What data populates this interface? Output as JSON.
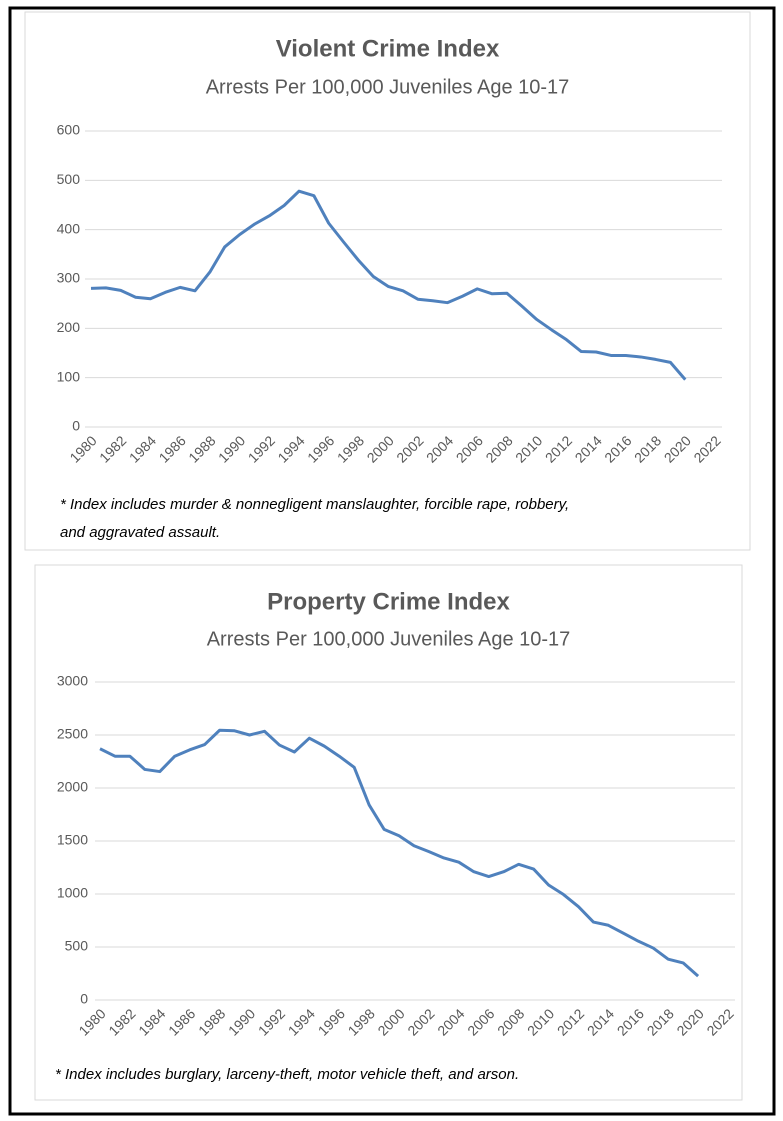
{
  "chart_data": [
    {
      "type": "line",
      "title": "Violent Crime Index",
      "subtitle": "Arrests Per 100,000 Juveniles Age 10-17",
      "note": [
        "* Index includes murder & nonnegligent manslaughter, forcible rape, robbery,",
        "and aggravated assault."
      ],
      "x": [
        1980,
        1981,
        1982,
        1983,
        1984,
        1985,
        1986,
        1987,
        1988,
        1989,
        1990,
        1991,
        1992,
        1993,
        1994,
        1995,
        1996,
        1997,
        1998,
        1999,
        2000,
        2001,
        2002,
        2003,
        2004,
        2005,
        2006,
        2007,
        2008,
        2009,
        2010,
        2011,
        2012,
        2013,
        2014,
        2015,
        2016,
        2017,
        2018,
        2019,
        2020
      ],
      "values": [
        281,
        282,
        277,
        263,
        260,
        273,
        283,
        276,
        314,
        365,
        390,
        411,
        428,
        449,
        478,
        469,
        413,
        375,
        338,
        305,
        285,
        276,
        259,
        256,
        252,
        265,
        280,
        270,
        271,
        245,
        218,
        197,
        177,
        153,
        152,
        145,
        145,
        142,
        137,
        131,
        96
      ],
      "color": "#4f81bd",
      "xlim": [
        1980,
        2022
      ],
      "xticks": [
        1980,
        1982,
        1984,
        1986,
        1988,
        1990,
        1992,
        1994,
        1996,
        1998,
        2000,
        2002,
        2004,
        2006,
        2008,
        2010,
        2012,
        2014,
        2016,
        2018,
        2020,
        2022
      ],
      "ylim": [
        0,
        600
      ],
      "yticks": [
        0,
        100,
        200,
        300,
        400,
        500,
        600
      ],
      "grid": true
    },
    {
      "type": "line",
      "title": "Property Crime Index",
      "subtitle": "Arrests Per 100,000 Juveniles Age 10-17",
      "note": [
        "* Index includes burglary, larceny-theft, motor vehicle theft, and arson."
      ],
      "x": [
        1980,
        1981,
        1982,
        1983,
        1984,
        1985,
        1986,
        1987,
        1988,
        1989,
        1990,
        1991,
        1992,
        1993,
        1994,
        1995,
        1996,
        1997,
        1998,
        1999,
        2000,
        2001,
        2002,
        2003,
        2004,
        2005,
        2006,
        2007,
        2008,
        2009,
        2010,
        2011,
        2012,
        2013,
        2014,
        2015,
        2016,
        2017,
        2018,
        2019,
        2020
      ],
      "values": [
        2370,
        2300,
        2300,
        2175,
        2155,
        2300,
        2360,
        2410,
        2545,
        2540,
        2500,
        2535,
        2405,
        2340,
        2470,
        2395,
        2300,
        2195,
        1840,
        1610,
        1550,
        1455,
        1400,
        1340,
        1300,
        1210,
        1165,
        1210,
        1280,
        1235,
        1085,
        995,
        880,
        735,
        705,
        630,
        555,
        490,
        385,
        350,
        225
      ],
      "color": "#4f81bd",
      "xlim": [
        1980,
        2022
      ],
      "xticks": [
        1980,
        1982,
        1984,
        1986,
        1988,
        1990,
        1992,
        1994,
        1996,
        1998,
        2000,
        2002,
        2004,
        2006,
        2008,
        2010,
        2012,
        2014,
        2016,
        2018,
        2020,
        2022
      ],
      "ylim": [
        0,
        3000
      ],
      "yticks": [
        0,
        500,
        1000,
        1500,
        2000,
        2500,
        3000
      ],
      "grid": true
    }
  ]
}
